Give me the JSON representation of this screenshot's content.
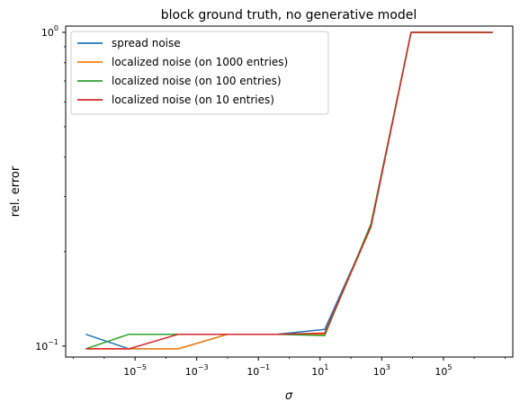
{
  "chart_data": {
    "type": "line",
    "title": "block ground truth, no generative model",
    "xlabel": "σ",
    "ylabel": "rel. error",
    "xscale": "log",
    "yscale": "log",
    "xlim_log10": [
      -7.25,
      7.25
    ],
    "ylim_log10": [
      -1.035,
      0.02
    ],
    "grid": false,
    "legend_position": "upper-left",
    "x_ticks": [
      {
        "mantissa": "10",
        "exponent": "−5",
        "log10": -5
      },
      {
        "mantissa": "10",
        "exponent": "−3",
        "log10": -3
      },
      {
        "mantissa": "10",
        "exponent": "−1",
        "log10": -1
      },
      {
        "mantissa": "10",
        "exponent": "1",
        "log10": 1
      },
      {
        "mantissa": "10",
        "exponent": "3",
        "log10": 3
      },
      {
        "mantissa": "10",
        "exponent": "5",
        "log10": 5
      }
    ],
    "y_ticks": [
      {
        "mantissa": "10",
        "exponent": "0",
        "log10": 0
      },
      {
        "mantissa": "10",
        "exponent": "−1",
        "log10": -1
      }
    ],
    "x_log10": [
      -6.6,
      -5.2,
      -3.6,
      -2.0,
      -0.4,
      1.15,
      2.65,
      3.95,
      6.6
    ],
    "series": [
      {
        "name": "spread noise",
        "color": "#1f77b4",
        "values": [
          0.109,
          0.098,
          0.098,
          0.109,
          0.109,
          0.113,
          0.24,
          1.0,
          1.0
        ]
      },
      {
        "name": "localized noise (on 1000 entries)",
        "color": "#ff7f0e",
        "values": [
          0.098,
          0.098,
          0.098,
          0.109,
          0.109,
          0.109,
          0.24,
          1.0,
          1.0
        ]
      },
      {
        "name": "localized noise (on 100 entries)",
        "color": "#2ca02c",
        "values": [
          0.098,
          0.109,
          0.109,
          0.109,
          0.109,
          0.108,
          0.245,
          1.0,
          1.0
        ]
      },
      {
        "name": "localized noise (on 10 entries)",
        "color": "#d62728",
        "values": [
          0.098,
          0.098,
          0.109,
          0.109,
          0.109,
          0.11,
          0.24,
          1.0,
          1.0
        ]
      }
    ]
  }
}
